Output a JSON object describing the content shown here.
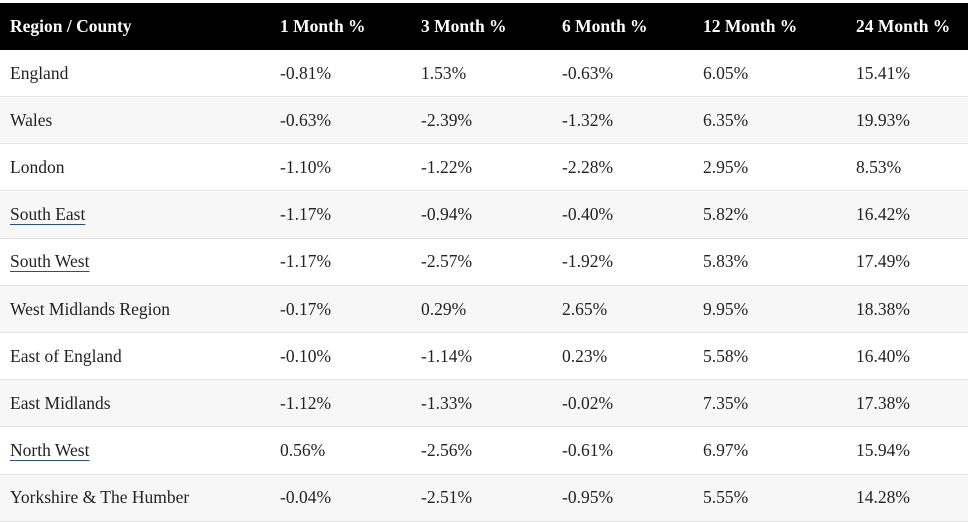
{
  "table": {
    "columns": [
      "Region / County",
      "1 Month %",
      "3 Month %",
      "6 Month %",
      "12 Month %",
      "24 Month %"
    ],
    "rows": [
      [
        "England",
        "-0.81%",
        "1.53%",
        "-0.63%",
        "6.05%",
        "15.41%"
      ],
      [
        "Wales",
        "-0.63%",
        "-2.39%",
        "-1.32%",
        "6.35%",
        "19.93%"
      ],
      [
        "London",
        "-1.10%",
        "-1.22%",
        "-2.28%",
        "2.95%",
        "8.53%"
      ],
      [
        "South East",
        "-1.17%",
        "-0.94%",
        "-0.40%",
        "5.82%",
        "16.42%"
      ],
      [
        "South West",
        "-1.17%",
        "-2.57%",
        "-1.92%",
        "5.83%",
        "17.49%"
      ],
      [
        "West Midlands Region",
        "-0.17%",
        "0.29%",
        "2.65%",
        "9.95%",
        "18.38%"
      ],
      [
        "East of England",
        "-0.10%",
        "-1.14%",
        "0.23%",
        "5.58%",
        "16.40%"
      ],
      [
        "East Midlands",
        "-1.12%",
        "-1.33%",
        "-0.02%",
        "7.35%",
        "17.38%"
      ],
      [
        "North West",
        "0.56%",
        "-2.56%",
        "-0.61%",
        "6.97%",
        "15.94%"
      ],
      [
        "Yorkshire & The Humber",
        "-0.04%",
        "-2.51%",
        "-0.95%",
        "5.55%",
        "14.28%"
      ]
    ]
  }
}
